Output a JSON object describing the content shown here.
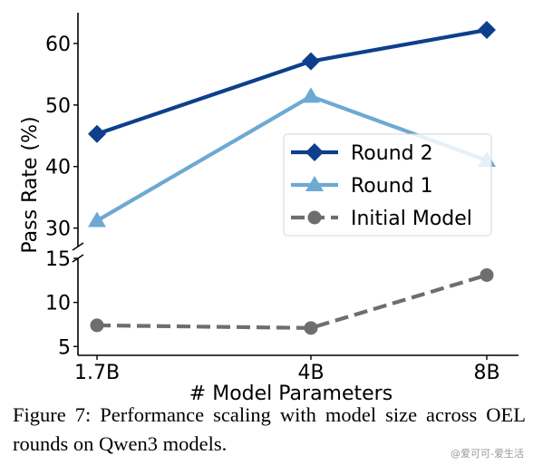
{
  "caption": "Figure 7:  Performance scaling with model size across OEL rounds on Qwen3 models.",
  "watermark": "@爱可可-爱生活",
  "chart_data": {
    "type": "line",
    "xlabel": "# Model Parameters",
    "ylabel": "Pass Rate (%)",
    "categories": [
      "1.7B",
      "4B",
      "8B"
    ],
    "broken_axis": true,
    "upper_ylim": [
      27,
      65
    ],
    "lower_ylim": [
      4,
      15
    ],
    "upper_yticks": [
      30,
      40,
      50,
      60
    ],
    "lower_yticks": [
      5,
      10,
      15
    ],
    "legend_position": "center-right",
    "series": [
      {
        "name": "Round 2",
        "values": [
          45.3,
          57.1,
          62.2
        ],
        "color": "#0d3f8c",
        "marker": "diamond",
        "dash": "solid"
      },
      {
        "name": "Round 1",
        "values": [
          31.2,
          51.4,
          41.0
        ],
        "color": "#6da9d2",
        "marker": "triangle",
        "dash": "solid"
      },
      {
        "name": "Initial Model",
        "values": [
          7.4,
          7.1,
          13.1
        ],
        "color": "#6e6e6e",
        "marker": "circle",
        "dash": "dashed"
      }
    ]
  }
}
